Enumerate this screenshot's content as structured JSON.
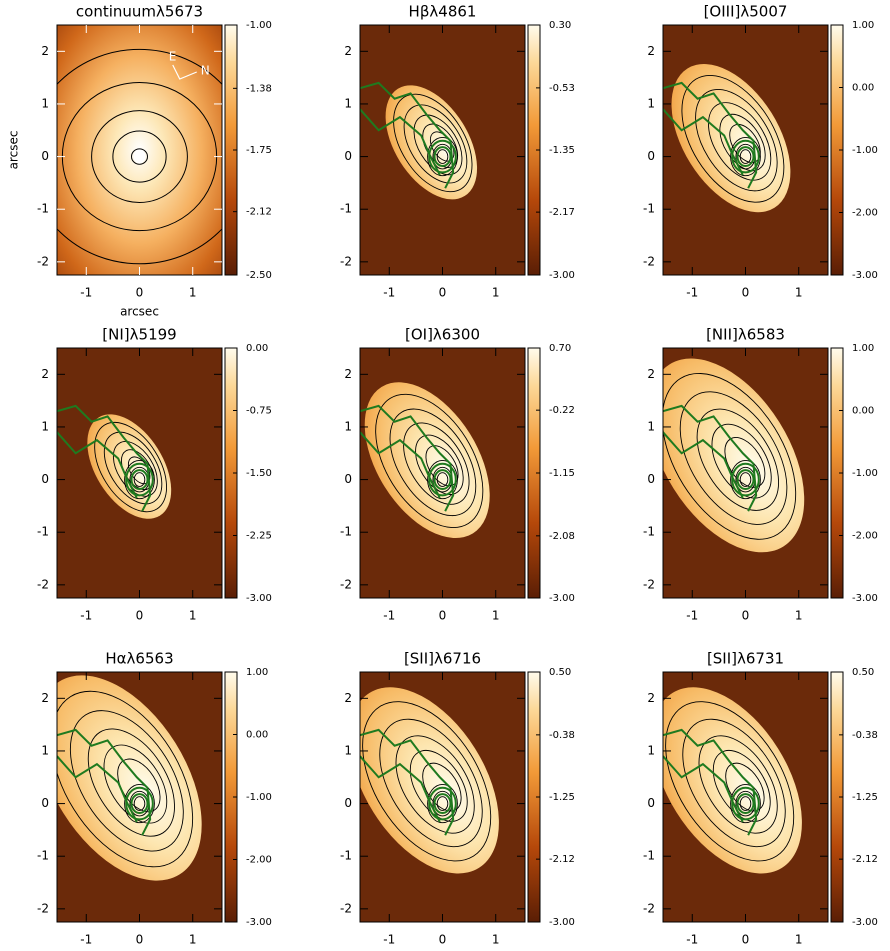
{
  "chart_data": [
    {
      "type": "image",
      "title": "continuumλ5673",
      "xlabel": "arcsec",
      "ylabel": "arcsec",
      "annotations": [
        "E",
        "N"
      ],
      "xlim": [
        -1.55,
        1.55
      ],
      "ylim": [
        -2.25,
        2.5
      ],
      "xticks": [
        -1,
        0,
        1
      ],
      "yticks": [
        -2,
        -1,
        0,
        1,
        2
      ],
      "clim": [
        -2.5,
        -1
      ],
      "cticks": [
        {
          "value": -2.5,
          "label": "-2.50"
        },
        {
          "value": -2.12,
          "label": "-2.12"
        },
        {
          "value": -1.75,
          "label": "-1.75"
        },
        {
          "value": -1.38,
          "label": "-1.38"
        },
        {
          "value": -1,
          "label": "-1.00"
        }
      ]
    },
    {
      "type": "image",
      "title": "Hβλ4861",
      "xlim": [
        -1.55,
        1.55
      ],
      "ylim": [
        -2.25,
        2.5
      ],
      "xticks": [
        -1,
        0,
        1
      ],
      "yticks": [
        -2,
        -1,
        0,
        1,
        2
      ],
      "clim": [
        -3,
        0.3
      ],
      "cticks": [
        {
          "value": -3,
          "label": "-3.00"
        },
        {
          "value": -2.17,
          "label": "-2.17"
        },
        {
          "value": -1.35,
          "label": "-1.35"
        },
        {
          "value": -0.53,
          "label": "-0.53"
        },
        {
          "value": 0.3,
          "label": "0.30"
        }
      ]
    },
    {
      "type": "image",
      "title": "[OIII]λ5007",
      "xlim": [
        -1.55,
        1.55
      ],
      "ylim": [
        -2.25,
        2.5
      ],
      "xticks": [
        -1,
        0,
        1
      ],
      "yticks": [
        -2,
        -1,
        0,
        1,
        2
      ],
      "clim": [
        -3,
        1
      ],
      "cticks": [
        {
          "value": -3,
          "label": "-3.00"
        },
        {
          "value": -2,
          "label": "-2.00"
        },
        {
          "value": -1,
          "label": "-1.00"
        },
        {
          "value": 0,
          "label": "0.00"
        },
        {
          "value": 1,
          "label": "1.00"
        }
      ]
    },
    {
      "type": "image",
      "title": "[NI]λ5199",
      "xlim": [
        -1.55,
        1.55
      ],
      "ylim": [
        -2.25,
        2.5
      ],
      "xticks": [
        -1,
        0,
        1
      ],
      "yticks": [
        -2,
        -1,
        0,
        1,
        2
      ],
      "clim": [
        -3,
        0
      ],
      "cticks": [
        {
          "value": -3,
          "label": "-3.00"
        },
        {
          "value": -2.25,
          "label": "-2.25"
        },
        {
          "value": -1.5,
          "label": "-1.50"
        },
        {
          "value": -0.75,
          "label": "-0.75"
        },
        {
          "value": 0,
          "label": "0.00"
        }
      ]
    },
    {
      "type": "image",
      "title": "[OI]λ6300",
      "xlim": [
        -1.55,
        1.55
      ],
      "ylim": [
        -2.25,
        2.5
      ],
      "xticks": [
        -1,
        0,
        1
      ],
      "yticks": [
        -2,
        -1,
        0,
        1,
        2
      ],
      "clim": [
        -3,
        0.7
      ],
      "cticks": [
        {
          "value": -3,
          "label": "-3.00"
        },
        {
          "value": -2.08,
          "label": "-2.08"
        },
        {
          "value": -1.15,
          "label": "-1.15"
        },
        {
          "value": -0.22,
          "label": "-0.22"
        },
        {
          "value": 0.7,
          "label": "0.70"
        }
      ]
    },
    {
      "type": "image",
      "title": "[NII]λ6583",
      "xlim": [
        -1.55,
        1.55
      ],
      "ylim": [
        -2.25,
        2.5
      ],
      "xticks": [
        -1,
        0,
        1
      ],
      "yticks": [
        -2,
        -1,
        0,
        1,
        2
      ],
      "clim": [
        -3,
        1
      ],
      "cticks": [
        {
          "value": -3,
          "label": "-3.00"
        },
        {
          "value": -2,
          "label": "-2.00"
        },
        {
          "value": -1,
          "label": "-1.00"
        },
        {
          "value": 0,
          "label": "0.00"
        },
        {
          "value": 1,
          "label": "1.00"
        }
      ]
    },
    {
      "type": "image",
      "title": "Hαλ6563",
      "xlim": [
        -1.55,
        1.55
      ],
      "ylim": [
        -2.25,
        2.5
      ],
      "xticks": [
        -1,
        0,
        1
      ],
      "yticks": [
        -2,
        -1,
        0,
        1,
        2
      ],
      "clim": [
        -3,
        1
      ],
      "cticks": [
        {
          "value": -3,
          "label": "-3.00"
        },
        {
          "value": -2,
          "label": "-2.00"
        },
        {
          "value": -1,
          "label": "-1.00"
        },
        {
          "value": 0,
          "label": "0.00"
        },
        {
          "value": 1,
          "label": "1.00"
        }
      ]
    },
    {
      "type": "image",
      "title": "[SII]λ6716",
      "xlim": [
        -1.55,
        1.55
      ],
      "ylim": [
        -2.25,
        2.5
      ],
      "xticks": [
        -1,
        0,
        1
      ],
      "yticks": [
        -2,
        -1,
        0,
        1,
        2
      ],
      "clim": [
        -3,
        0.5
      ],
      "cticks": [
        {
          "value": -3,
          "label": "-3.00"
        },
        {
          "value": -2.12,
          "label": "-2.12"
        },
        {
          "value": -1.25,
          "label": "-1.25"
        },
        {
          "value": -0.38,
          "label": "-0.38"
        },
        {
          "value": 0.5,
          "label": "0.50"
        }
      ]
    },
    {
      "type": "image",
      "title": "[SII]λ6731",
      "xlim": [
        -1.55,
        1.55
      ],
      "ylim": [
        -2.25,
        2.5
      ],
      "xticks": [
        -1,
        0,
        1
      ],
      "yticks": [
        -2,
        -1,
        0,
        1,
        2
      ],
      "clim": [
        -3,
        0.5
      ],
      "cticks": [
        {
          "value": -3,
          "label": "-3.00"
        },
        {
          "value": -2.12,
          "label": "-2.12"
        },
        {
          "value": -1.25,
          "label": "-1.25"
        },
        {
          "value": -0.38,
          "label": "-0.38"
        },
        {
          "value": 0.5,
          "label": "0.50"
        }
      ]
    }
  ]
}
